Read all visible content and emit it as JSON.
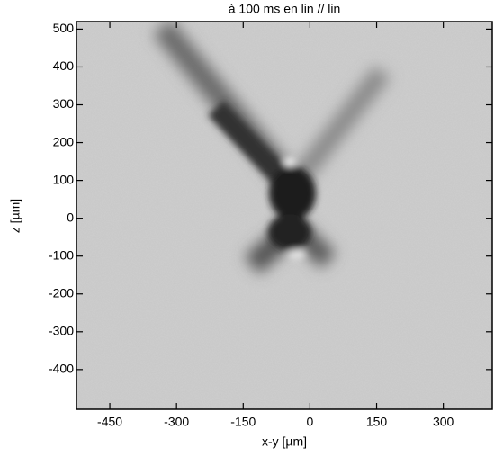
{
  "chart_data": {
    "type": "image",
    "title": "à 100 ms en lin // lin",
    "x_label": "x-y [µm]",
    "y_label": "z [µm]",
    "xlim": [
      -525,
      410
    ],
    "ylim": [
      -505,
      520
    ],
    "xticks": [
      -450,
      -300,
      -150,
      0,
      150,
      300
    ],
    "yticks": [
      -400,
      -300,
      -200,
      -100,
      0,
      100,
      200,
      300,
      400,
      500
    ]
  }
}
